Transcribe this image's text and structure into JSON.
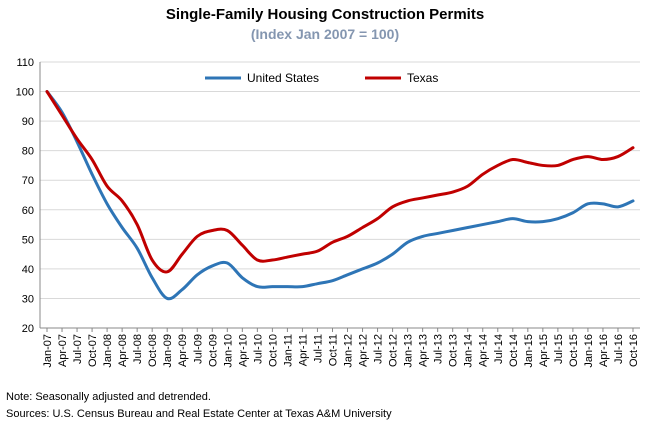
{
  "header": {
    "title": "Single-Family Housing Construction Permits",
    "subtitle": "(Index Jan 2007 = 100)",
    "subtitle_color": "#8496B0"
  },
  "notes": {
    "note": "Note: Seasonally adjusted and detrended.",
    "sources": "Sources: U.S. Census Bureau and Real Estate Center at Texas A&M University"
  },
  "chart_data": {
    "type": "line",
    "title": "Single-Family Housing Construction Permits",
    "subtitle": "(Index Jan 2007 = 100)",
    "xlabel": "",
    "ylabel": "",
    "ylim": [
      20,
      110
    ],
    "yticks": [
      20,
      30,
      40,
      50,
      60,
      70,
      80,
      90,
      100,
      110
    ],
    "grid": "horizontal",
    "legend_position": "top-center",
    "xtick_labels": [
      "Jan-07",
      "Apr-07",
      "Jul-07",
      "Oct-07",
      "Jan-08",
      "Apr-08",
      "Jul-08",
      "Oct-08",
      "Jan-09",
      "Apr-09",
      "Jul-09",
      "Oct-09",
      "Jan-10",
      "Apr-10",
      "Jul-10",
      "Oct-10",
      "Jan-11",
      "Apr-11",
      "Jul-11",
      "Oct-11",
      "Jan-12",
      "Apr-12",
      "Jul-12",
      "Oct-12",
      "Jan-13",
      "Apr-13",
      "Jul-13",
      "Oct-13",
      "Jan-14",
      "Apr-14",
      "Jul-14",
      "Oct-14",
      "Jan-15",
      "Apr-15",
      "Jul-15",
      "Oct-15",
      "Jan-16",
      "Apr-16",
      "Jul-16",
      "Oct-16"
    ],
    "series": [
      {
        "name": "United States",
        "color": "#2E75B6",
        "values": [
          100,
          93,
          83,
          72,
          62,
          54,
          47,
          37,
          30,
          33,
          38,
          41,
          42,
          37,
          34,
          34,
          34,
          34,
          35,
          36,
          38,
          40,
          42,
          45,
          49,
          51,
          52,
          53,
          54,
          55,
          56,
          57,
          56,
          56,
          57,
          59,
          62,
          62,
          61,
          63
        ]
      },
      {
        "name": "Texas",
        "color": "#C00000",
        "values": [
          100,
          92,
          84,
          77,
          68,
          63,
          55,
          43,
          39,
          45,
          51,
          53,
          53,
          48,
          43,
          43,
          44,
          45,
          46,
          49,
          51,
          54,
          57,
          61,
          63,
          64,
          65,
          66,
          68,
          72,
          75,
          77,
          76,
          75,
          75,
          77,
          78,
          77,
          78,
          81
        ]
      }
    ]
  }
}
